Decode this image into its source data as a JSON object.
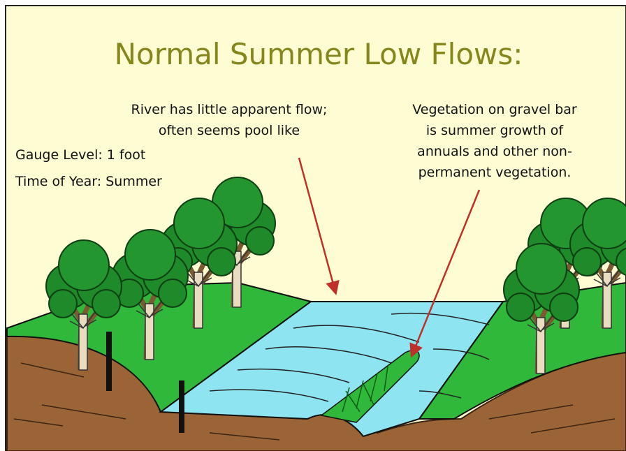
{
  "title": "Normal Summer Low Flows:",
  "annotations": [
    {
      "lines": [
        "River has little apparent flow;",
        "often seems pool like"
      ]
    },
    {
      "lines": [
        "Vegetation on gravel bar",
        "is summer growth of",
        "annuals and other non-",
        "permanent vegetation."
      ]
    }
  ],
  "labels": [
    "Gauge Level: 1 foot",
    "Time of Year: Summer"
  ]
}
